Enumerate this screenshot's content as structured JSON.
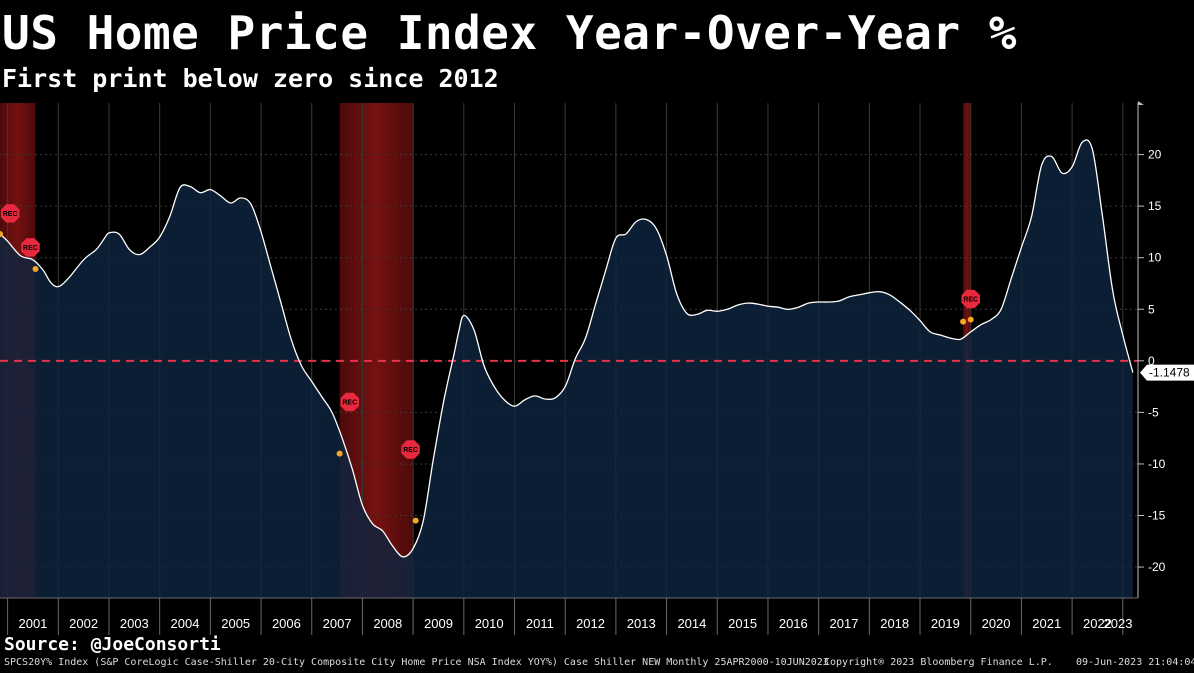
{
  "header": {
    "title": "US Home Price Index Year-Over-Year %",
    "subtitle": "First print below zero since 2012"
  },
  "source": "Source: @JoeConsorti",
  "footer": {
    "left": "SPCS20Y% Index (S&P CoreLogic Case-Shiller 20-City Composite City Home Price NSA Index YOY%) Case Shiller NEW  Monthly 25APR2000-10JUN2023",
    "center": "Copyright® 2023 Bloomberg Finance L.P.",
    "right": "09-Jun-2023 21:04:04"
  },
  "colors": {
    "line": "#ffffff",
    "area": "#0e2440",
    "zero_line": "#e8324a",
    "recession": "#8a1414",
    "marker": "#f5a623",
    "rec_badge": "#e8283c"
  },
  "chart_data": {
    "type": "area",
    "title": "US Home Price Index Year-Over-Year %",
    "subtitle": "First print below zero since 2012",
    "xlabel": "",
    "ylabel": "",
    "x_range": [
      2000.85,
      2023.3
    ],
    "ylim": [
      -23,
      25
    ],
    "yticks": [
      20,
      15,
      10,
      5,
      0,
      -5,
      -10,
      -15,
      -20
    ],
    "ytick_labels": [
      "20",
      "15",
      "10",
      "5",
      "0",
      "-5",
      "-10",
      "-15",
      "-20"
    ],
    "years": [
      "2001",
      "2002",
      "2003",
      "2004",
      "2005",
      "2006",
      "2007",
      "2008",
      "2009",
      "2010",
      "2011",
      "2012",
      "2013",
      "2014",
      "2015",
      "2016",
      "2017",
      "2018",
      "2019",
      "2020",
      "2021",
      "2022",
      "2023"
    ],
    "grid": true,
    "reference_line": {
      "y": 0,
      "style": "dashed"
    },
    "last_value_label": "-1.1478",
    "series": [
      {
        "x": [
          2000.85,
          2001.0,
          2001.25,
          2001.5,
          2001.7,
          2001.85,
          2002.0,
          2002.2,
          2002.5,
          2002.75,
          2002.9,
          2003.0,
          2003.2,
          2003.4,
          2003.6,
          2003.8,
          2004.0,
          2004.2,
          2004.4,
          2004.6,
          2004.8,
          2005.0,
          2005.2,
          2005.4,
          2005.6,
          2005.8,
          2006.0,
          2006.2,
          2006.4,
          2006.6,
          2006.8,
          2007.0,
          2007.2,
          2007.4,
          2007.6,
          2007.8,
          2008.0,
          2008.2,
          2008.4,
          2008.6,
          2008.8,
          2009.0,
          2009.2,
          2009.4,
          2009.6,
          2009.8,
          2009.9,
          2010.0,
          2010.2,
          2010.4,
          2010.6,
          2010.8,
          2011.0,
          2011.2,
          2011.4,
          2011.6,
          2011.8,
          2012.0,
          2012.2,
          2012.4,
          2012.6,
          2012.8,
          2013.0,
          2013.2,
          2013.4,
          2013.6,
          2013.8,
          2014.0,
          2014.2,
          2014.4,
          2014.6,
          2014.8,
          2015.0,
          2015.2,
          2015.4,
          2015.6,
          2015.8,
          2016.0,
          2016.2,
          2016.4,
          2016.6,
          2016.8,
          2017.0,
          2017.2,
          2017.4,
          2017.6,
          2017.8,
          2018.0,
          2018.2,
          2018.4,
          2018.6,
          2018.8,
          2019.0,
          2019.2,
          2019.4,
          2019.6,
          2019.8,
          2020.0,
          2020.2,
          2020.4,
          2020.6,
          2020.8,
          2021.0,
          2021.2,
          2021.4,
          2021.6,
          2021.8,
          2022.0,
          2022.2,
          2022.4,
          2022.6,
          2022.8,
          2023.0,
          2023.2
        ],
        "y": [
          12.3,
          11.6,
          10.2,
          9.8,
          8.8,
          7.6,
          7.2,
          8.0,
          9.8,
          10.8,
          11.8,
          12.4,
          12.3,
          10.8,
          10.3,
          11.0,
          12.0,
          14.0,
          16.8,
          16.9,
          16.3,
          16.6,
          16.0,
          15.3,
          15.8,
          15.2,
          12.5,
          9.0,
          5.5,
          2.0,
          -0.5,
          -2.0,
          -3.5,
          -5.0,
          -7.5,
          -10.5,
          -14.0,
          -15.8,
          -16.5,
          -18.0,
          -19.0,
          -18.2,
          -15.5,
          -9.5,
          -4.0,
          0.5,
          2.8,
          4.4,
          3.0,
          -0.5,
          -2.5,
          -3.8,
          -4.4,
          -3.8,
          -3.4,
          -3.7,
          -3.6,
          -2.5,
          0.2,
          2.2,
          5.5,
          8.8,
          11.9,
          12.3,
          13.5,
          13.7,
          12.8,
          10.2,
          6.5,
          4.6,
          4.5,
          4.9,
          4.8,
          5.0,
          5.4,
          5.6,
          5.5,
          5.3,
          5.2,
          5.0,
          5.2,
          5.6,
          5.7,
          5.7,
          5.8,
          6.2,
          6.4,
          6.6,
          6.7,
          6.4,
          5.7,
          4.9,
          3.9,
          2.8,
          2.5,
          2.2,
          2.1,
          2.8,
          3.5,
          4.0,
          5.0,
          8.0,
          11.0,
          14.0,
          19.0,
          19.8,
          18.2,
          18.8,
          21.2,
          20.5,
          14.0,
          6.8,
          2.5,
          -1.1478
        ]
      }
    ],
    "recessions": [
      [
        2000.85,
        2001.55
      ],
      [
        2007.55,
        2009.0
      ],
      [
        2019.85,
        2020.0
      ]
    ],
    "markers": [
      {
        "x": 2000.85,
        "y": 12.3
      },
      {
        "x": 2001.55,
        "y": 8.9
      },
      {
        "x": 2007.55,
        "y": -9.0
      },
      {
        "x": 2009.05,
        "y": -15.5
      },
      {
        "x": 2019.85,
        "y": 3.8
      },
      {
        "x": 2020.0,
        "y": 4.0
      }
    ],
    "annotations": [
      {
        "text": "REC",
        "x": 2001.05,
        "y": 14.3
      },
      {
        "text": "REC",
        "x": 2001.45,
        "y": 11.0
      },
      {
        "text": "REC",
        "x": 2007.75,
        "y": -4.0
      },
      {
        "text": "REC",
        "x": 2008.95,
        "y": -8.6
      },
      {
        "text": "REC",
        "x": 2020.0,
        "y": 6.0
      }
    ]
  }
}
